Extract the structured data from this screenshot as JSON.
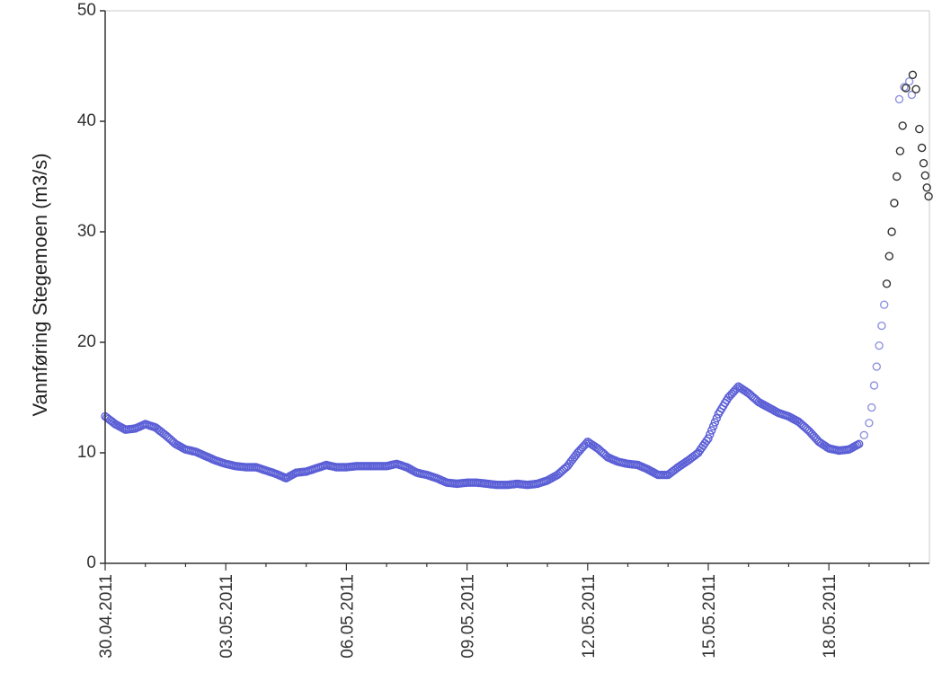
{
  "chart_data": {
    "type": "scatter",
    "title": "",
    "xlabel": "",
    "ylabel": "Vannføring Stegemoen (m3/s)",
    "x_tick_labels": [
      "30.04.2011",
      "03.05.2011",
      "06.05.2011",
      "09.05.2011",
      "12.05.2011",
      "15.05.2011",
      "18.05.2011"
    ],
    "y_tick_labels": [
      "0",
      "10",
      "20",
      "30",
      "40",
      "50"
    ],
    "xlim": [
      "2011-04-30",
      "2011-05-20"
    ],
    "ylim": [
      0,
      50
    ],
    "grid": false,
    "legend": "none",
    "series": [
      {
        "color": "#5b5fd6",
        "marker": "open-circle",
        "points": [
          [
            "2011-04-30T00:00",
            13.3
          ],
          [
            "2011-04-30T06:00",
            12.6
          ],
          [
            "2011-04-30T12:00",
            12.1
          ],
          [
            "2011-04-30T18:00",
            12.2
          ],
          [
            "2011-05-01T00:00",
            12.6
          ],
          [
            "2011-05-01T06:00",
            12.3
          ],
          [
            "2011-05-01T12:00",
            11.6
          ],
          [
            "2011-05-01T18:00",
            10.8
          ],
          [
            "2011-05-02T00:00",
            10.3
          ],
          [
            "2011-05-02T06:00",
            10.1
          ],
          [
            "2011-05-02T12:00",
            9.7
          ],
          [
            "2011-05-02T18:00",
            9.3
          ],
          [
            "2011-05-03T00:00",
            9.0
          ],
          [
            "2011-05-03T06:00",
            8.8
          ],
          [
            "2011-05-03T12:00",
            8.7
          ],
          [
            "2011-05-03T18:00",
            8.7
          ],
          [
            "2011-05-04T00:00",
            8.4
          ],
          [
            "2011-05-04T06:00",
            8.1
          ],
          [
            "2011-05-04T12:00",
            7.7
          ],
          [
            "2011-05-04T18:00",
            8.2
          ],
          [
            "2011-05-05T00:00",
            8.3
          ],
          [
            "2011-05-05T06:00",
            8.6
          ],
          [
            "2011-05-05T12:00",
            8.9
          ],
          [
            "2011-05-05T18:00",
            8.7
          ],
          [
            "2011-05-06T00:00",
            8.7
          ],
          [
            "2011-05-06T06:00",
            8.8
          ],
          [
            "2011-05-06T12:00",
            8.8
          ],
          [
            "2011-05-06T18:00",
            8.8
          ],
          [
            "2011-05-07T00:00",
            8.8
          ],
          [
            "2011-05-07T06:00",
            9.0
          ],
          [
            "2011-05-07T12:00",
            8.7
          ],
          [
            "2011-05-07T18:00",
            8.2
          ],
          [
            "2011-05-08T00:00",
            8.0
          ],
          [
            "2011-05-08T06:00",
            7.7
          ],
          [
            "2011-05-08T12:00",
            7.3
          ],
          [
            "2011-05-08T18:00",
            7.2
          ],
          [
            "2011-05-09T00:00",
            7.3
          ],
          [
            "2011-05-09T06:00",
            7.3
          ],
          [
            "2011-05-09T12:00",
            7.2
          ],
          [
            "2011-05-09T18:00",
            7.1
          ],
          [
            "2011-05-10T00:00",
            7.1
          ],
          [
            "2011-05-10T06:00",
            7.2
          ],
          [
            "2011-05-10T12:00",
            7.1
          ],
          [
            "2011-05-10T18:00",
            7.2
          ],
          [
            "2011-05-11T00:00",
            7.5
          ],
          [
            "2011-05-11T06:00",
            8.0
          ],
          [
            "2011-05-11T12:00",
            8.8
          ],
          [
            "2011-05-11T18:00",
            10.0
          ],
          [
            "2011-05-12T00:00",
            11.0
          ],
          [
            "2011-05-12T06:00",
            10.4
          ],
          [
            "2011-05-12T12:00",
            9.6
          ],
          [
            "2011-05-12T18:00",
            9.2
          ],
          [
            "2011-05-13T00:00",
            9.0
          ],
          [
            "2011-05-13T06:00",
            8.9
          ],
          [
            "2011-05-13T12:00",
            8.5
          ],
          [
            "2011-05-13T18:00",
            8.0
          ],
          [
            "2011-05-14T00:00",
            8.0
          ],
          [
            "2011-05-14T06:00",
            8.7
          ],
          [
            "2011-05-14T12:00",
            9.3
          ],
          [
            "2011-05-14T18:00",
            10.0
          ],
          [
            "2011-05-15T00:00",
            11.3
          ],
          [
            "2011-05-15T06:00",
            13.5
          ],
          [
            "2011-05-15T12:00",
            15.0
          ],
          [
            "2011-05-15T18:00",
            16.0
          ],
          [
            "2011-05-16T00:00",
            15.4
          ],
          [
            "2011-05-16T06:00",
            14.6
          ],
          [
            "2011-05-16T12:00",
            14.1
          ],
          [
            "2011-05-16T18:00",
            13.6
          ],
          [
            "2011-05-17T00:00",
            13.3
          ],
          [
            "2011-05-17T06:00",
            12.8
          ],
          [
            "2011-05-17T12:00",
            12.0
          ],
          [
            "2011-05-17T18:00",
            11.0
          ],
          [
            "2011-05-18T00:00",
            10.4
          ],
          [
            "2011-05-18T06:00",
            10.2
          ],
          [
            "2011-05-18T12:00",
            10.3
          ],
          [
            "2011-05-18T18:00",
            10.8
          ]
        ]
      },
      {
        "color": "#8f92e0",
        "marker": "open-circle",
        "points": [
          [
            "2011-05-18T21:00",
            11.6
          ],
          [
            "2011-05-19T00:00",
            12.7
          ],
          [
            "2011-05-19T01:30",
            14.1
          ],
          [
            "2011-05-19T03:00",
            16.1
          ],
          [
            "2011-05-19T04:30",
            17.8
          ],
          [
            "2011-05-19T06:00",
            19.7
          ],
          [
            "2011-05-19T07:30",
            21.5
          ],
          [
            "2011-05-19T09:00",
            23.4
          ],
          [
            "2011-05-19T18:00",
            42.0
          ],
          [
            "2011-05-19T21:00",
            43.1
          ],
          [
            "2011-05-20T00:00",
            43.6
          ],
          [
            "2011-05-20T01:30",
            42.4
          ]
        ]
      },
      {
        "color": "#333333",
        "marker": "open-circle",
        "points": [
          [
            "2011-05-19T10:30",
            25.3
          ],
          [
            "2011-05-19T12:00",
            27.8
          ],
          [
            "2011-05-19T13:30",
            30.0
          ],
          [
            "2011-05-19T15:00",
            32.6
          ],
          [
            "2011-05-19T16:30",
            35.0
          ],
          [
            "2011-05-19T18:30",
            37.3
          ],
          [
            "2011-05-19T20:00",
            39.6
          ],
          [
            "2011-05-19T22:00",
            43.0
          ],
          [
            "2011-05-20T02:00",
            44.2
          ],
          [
            "2011-05-20T04:00",
            42.9
          ],
          [
            "2011-05-20T06:00",
            39.3
          ],
          [
            "2011-05-20T07:30",
            37.6
          ],
          [
            "2011-05-20T08:30",
            36.2
          ],
          [
            "2011-05-20T09:30",
            35.1
          ],
          [
            "2011-05-20T10:30",
            34.0
          ],
          [
            "2011-05-20T11:30",
            33.2
          ]
        ]
      }
    ]
  }
}
